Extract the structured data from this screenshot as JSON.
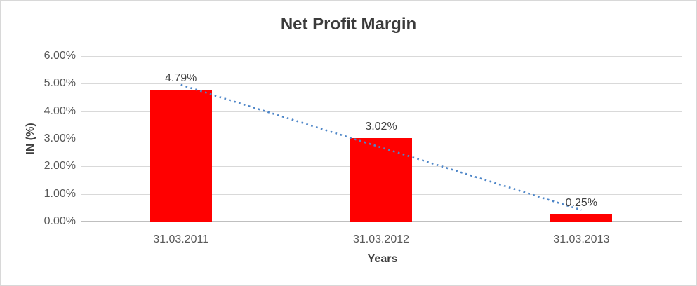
{
  "chart_data": {
    "type": "bar",
    "title": "Net Profit Margin",
    "categories": [
      "31.03.2011",
      "31.03.2012",
      "31.03.2013"
    ],
    "values": [
      4.79,
      3.02,
      0.25
    ],
    "value_labels": [
      "4.79%",
      "3.02%",
      "0.25%"
    ],
    "xlabel": "Years",
    "ylabel": "IN (%)",
    "ylim": [
      0,
      6
    ],
    "yticks": [
      0,
      1,
      2,
      3,
      4,
      5,
      6
    ],
    "ytick_labels": [
      "0.00%",
      "1.00%",
      "2.00%",
      "3.00%",
      "4.00%",
      "5.00%",
      "6.00%"
    ],
    "grid": true,
    "legend": "none",
    "trendline": {
      "type": "linear",
      "style": "dotted"
    }
  },
  "colors": {
    "bar": "#FF0000",
    "trendline": "#4E86C8",
    "title_text": "#3B3B3B",
    "axis_title_text": "#3F3F3F",
    "tick_text": "#595959",
    "data_label_text": "#3F3F3F",
    "gridline": "#D9D9D9",
    "axis_line": "#BFBFBF",
    "chart_border": "#D8D8D8",
    "background": "#FFFFFF"
  }
}
